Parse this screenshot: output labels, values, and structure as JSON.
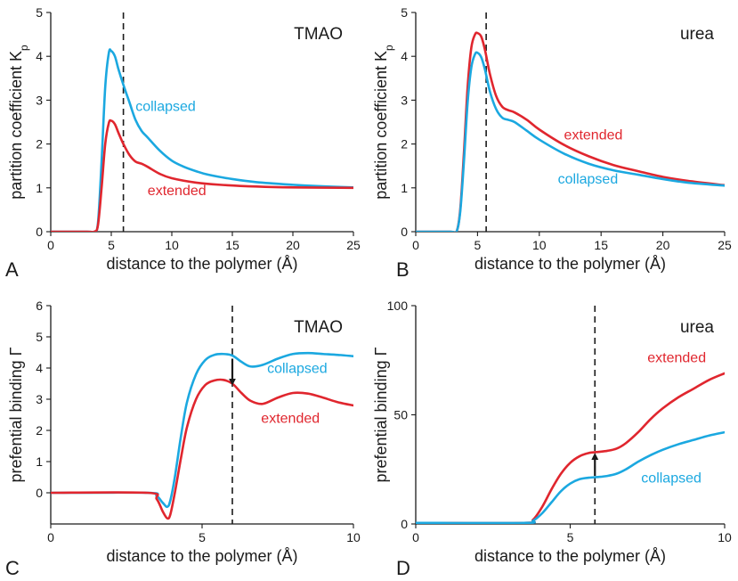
{
  "colors": {
    "collapsed": "#1BA8E0",
    "extended": "#E0262E",
    "axis": "#1a1a1a"
  },
  "chart_data": [
    {
      "type": "line",
      "panel_letter": "A",
      "title": "TMAO",
      "xlabel": "distance to the polymer (Å)",
      "ylabel": "partition coefficient K",
      "ylabel_sub": "p",
      "xlim": [
        0,
        25
      ],
      "ylim": [
        0,
        5
      ],
      "xticks": [
        0,
        5,
        10,
        15,
        20,
        25
      ],
      "yticks": [
        0,
        1,
        2,
        3,
        4,
        5
      ],
      "vline": 6.0,
      "series": [
        {
          "name": "collapsed",
          "color_key": "collapsed",
          "x": [
            0,
            3,
            3.6,
            3.9,
            4.2,
            4.5,
            4.8,
            5.0,
            5.3,
            5.6,
            6.0,
            6.5,
            7.0,
            7.5,
            8,
            9,
            10,
            11,
            12,
            13,
            15,
            17,
            20,
            22,
            25
          ],
          "y": [
            0,
            0,
            0,
            0.2,
            1.6,
            3.3,
            4.08,
            4.12,
            4.0,
            3.7,
            3.35,
            2.95,
            2.55,
            2.3,
            2.15,
            1.85,
            1.62,
            1.48,
            1.38,
            1.3,
            1.2,
            1.13,
            1.07,
            1.04,
            1.01
          ]
        },
        {
          "name": "extended",
          "color_key": "extended",
          "x": [
            0,
            3,
            3.6,
            3.9,
            4.2,
            4.5,
            4.8,
            5.0,
            5.3,
            5.6,
            6.0,
            6.5,
            7.0,
            7.5,
            8,
            9,
            10,
            12,
            14,
            17,
            20,
            25
          ],
          "y": [
            0,
            0,
            0,
            0.15,
            1.0,
            2.0,
            2.48,
            2.53,
            2.45,
            2.25,
            2.0,
            1.75,
            1.6,
            1.55,
            1.48,
            1.32,
            1.22,
            1.12,
            1.07,
            1.03,
            1.01,
            1.0
          ]
        }
      ],
      "annotations": [
        {
          "text": "collapsed",
          "color_key": "collapsed",
          "x": 7.0,
          "y": 2.75
        },
        {
          "text": "extended",
          "color_key": "extended",
          "x": 8.0,
          "y": 0.83
        }
      ]
    },
    {
      "type": "line",
      "panel_letter": "B",
      "title": "urea",
      "xlabel": "distance to the polymer (Å)",
      "ylabel": "partition coefficient K",
      "ylabel_sub": "p",
      "xlim": [
        0,
        25
      ],
      "ylim": [
        0,
        5
      ],
      "xticks": [
        0,
        5,
        10,
        15,
        20,
        25
      ],
      "yticks": [
        0,
        1,
        2,
        3,
        4,
        5
      ],
      "vline": 5.7,
      "series": [
        {
          "name": "extended",
          "color_key": "extended",
          "x": [
            0,
            2.8,
            3.3,
            3.6,
            3.9,
            4.2,
            4.5,
            4.8,
            5.0,
            5.3,
            5.6,
            6.0,
            6.5,
            7.0,
            7.5,
            8,
            9,
            10,
            12,
            14,
            16,
            18,
            20,
            22,
            25
          ],
          "y": [
            0,
            0,
            0,
            0.5,
            1.8,
            3.3,
            4.2,
            4.5,
            4.53,
            4.45,
            4.15,
            3.6,
            3.1,
            2.85,
            2.77,
            2.72,
            2.55,
            2.33,
            1.98,
            1.72,
            1.52,
            1.38,
            1.25,
            1.16,
            1.06
          ]
        },
        {
          "name": "collapsed",
          "color_key": "collapsed",
          "x": [
            0,
            2.8,
            3.3,
            3.6,
            3.9,
            4.2,
            4.5,
            4.8,
            5.0,
            5.3,
            5.6,
            6.0,
            6.5,
            7.0,
            7.5,
            8,
            9,
            10,
            12,
            14,
            16,
            18,
            20,
            22,
            25
          ],
          "y": [
            0,
            0,
            0,
            0.45,
            1.6,
            2.95,
            3.75,
            4.05,
            4.08,
            3.98,
            3.7,
            3.2,
            2.8,
            2.6,
            2.55,
            2.5,
            2.3,
            2.1,
            1.78,
            1.55,
            1.4,
            1.3,
            1.2,
            1.12,
            1.05
          ]
        }
      ],
      "annotations": [
        {
          "text": "extended",
          "color_key": "extended",
          "x": 12.0,
          "y": 2.1
        },
        {
          "text": "collapsed",
          "color_key": "collapsed",
          "x": 11.5,
          "y": 1.1
        }
      ]
    },
    {
      "type": "line",
      "panel_letter": "C",
      "title": "TMAO",
      "xlabel": "distance to the polymer (Å)",
      "ylabel": "prefential binding Γ",
      "xlim": [
        0,
        10
      ],
      "ylim": [
        -1,
        6
      ],
      "xticks": [
        0,
        5,
        10
      ],
      "yticks": [
        0,
        1,
        2,
        3,
        4,
        5,
        6
      ],
      "vline": 6.0,
      "arrow": {
        "x": 6.0,
        "y_from": 4.3,
        "y_to": 3.55
      },
      "series": [
        {
          "name": "collapsed",
          "color_key": "collapsed",
          "x": [
            0,
            3.2,
            3.5,
            3.7,
            3.85,
            3.95,
            4.1,
            4.3,
            4.5,
            4.8,
            5.1,
            5.4,
            5.7,
            6.0,
            6.3,
            6.6,
            7.0,
            7.5,
            8.0,
            8.5,
            9.0,
            9.5,
            10
          ],
          "y": [
            0,
            0,
            -0.1,
            -0.32,
            -0.45,
            -0.25,
            0.5,
            1.8,
            2.9,
            3.8,
            4.25,
            4.42,
            4.45,
            4.4,
            4.2,
            4.05,
            4.1,
            4.3,
            4.45,
            4.48,
            4.45,
            4.42,
            4.38
          ]
        },
        {
          "name": "extended",
          "color_key": "extended",
          "x": [
            0,
            3.2,
            3.5,
            3.7,
            3.85,
            3.95,
            4.1,
            4.3,
            4.5,
            4.8,
            5.1,
            5.4,
            5.7,
            6.0,
            6.3,
            6.6,
            7.0,
            7.5,
            8.0,
            8.5,
            9.0,
            9.5,
            10
          ],
          "y": [
            0,
            0,
            -0.2,
            -0.6,
            -0.82,
            -0.7,
            0.0,
            1.1,
            2.1,
            3.0,
            3.45,
            3.6,
            3.62,
            3.5,
            3.2,
            2.95,
            2.85,
            3.05,
            3.2,
            3.18,
            3.05,
            2.9,
            2.8
          ]
        }
      ],
      "annotations": [
        {
          "text": "collapsed",
          "color_key": "collapsed",
          "x": 7.15,
          "y": 3.85
        },
        {
          "text": "extended",
          "color_key": "extended",
          "x": 6.95,
          "y": 2.25
        }
      ]
    },
    {
      "type": "line",
      "panel_letter": "D",
      "title": "urea",
      "xlabel": "distance to the polymer (Å)",
      "ylabel": "prefential binding Γ",
      "xlim": [
        0,
        10
      ],
      "ylim": [
        0,
        100
      ],
      "xticks": [
        0,
        5,
        10
      ],
      "yticks": [
        0,
        50,
        100
      ],
      "vline": 5.8,
      "arrow": {
        "x": 5.8,
        "y_from": 22,
        "y_to": 31
      },
      "series": [
        {
          "name": "extended",
          "color_key": "extended",
          "x": [
            0,
            3.5,
            3.8,
            4.1,
            4.4,
            4.7,
            5.0,
            5.3,
            5.6,
            5.9,
            6.2,
            6.5,
            6.8,
            7.2,
            7.6,
            8.0,
            8.5,
            9.0,
            9.5,
            10
          ],
          "y": [
            0.5,
            0.5,
            2,
            8,
            16,
            23,
            28,
            31,
            32.5,
            33,
            33.5,
            34.5,
            37,
            42,
            48,
            53,
            58,
            62,
            66,
            69
          ]
        },
        {
          "name": "collapsed",
          "color_key": "collapsed",
          "x": [
            0,
            3.5,
            3.8,
            4.1,
            4.4,
            4.7,
            5.0,
            5.3,
            5.6,
            5.9,
            6.2,
            6.5,
            6.8,
            7.2,
            7.6,
            8.0,
            8.5,
            9.0,
            9.5,
            10
          ],
          "y": [
            0.5,
            0.5,
            1.5,
            5,
            10,
            15,
            18.5,
            20.5,
            21.2,
            21.5,
            22,
            23,
            25,
            28.5,
            31.5,
            34,
            36.5,
            38.5,
            40.5,
            42
          ]
        }
      ],
      "annotations": [
        {
          "text": "extended",
          "color_key": "extended",
          "x": 7.5,
          "y": 74
        },
        {
          "text": "collapsed",
          "color_key": "collapsed",
          "x": 7.3,
          "y": 19
        }
      ]
    }
  ]
}
